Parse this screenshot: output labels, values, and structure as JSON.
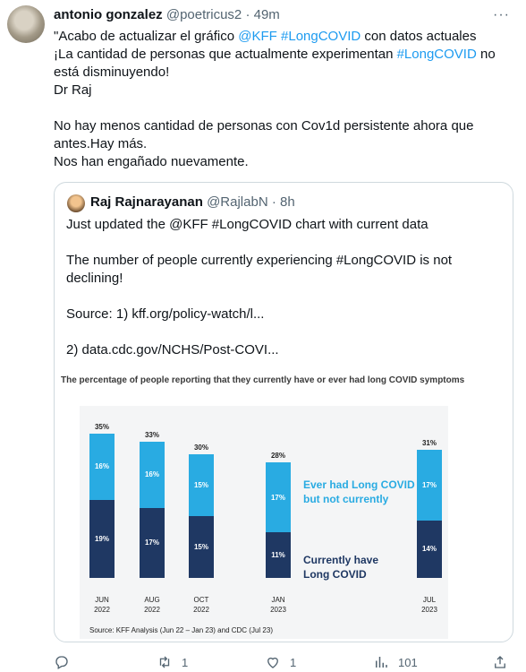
{
  "tweet": {
    "author_name": "antonio gonzalez",
    "author_handle": "@poetricus2",
    "time": "49m",
    "lines": [
      [
        {
          "t": "\"Acabo de actualizar el gráfico "
        },
        {
          "t": "@KFF",
          "link": true
        },
        {
          "t": " "
        },
        {
          "t": "#LongCOVID",
          "link": true
        },
        {
          "t": " con datos actuales"
        }
      ],
      [
        {
          "t": " ¡La cantidad de personas que actualmente experimentan "
        },
        {
          "t": "#LongCOVID",
          "link": true
        },
        {
          "t": " no"
        }
      ],
      [
        {
          "t": "está disminuyendo!"
        }
      ],
      [
        {
          "t": "Dr Raj"
        }
      ],
      [
        {
          "t": ""
        }
      ],
      [
        {
          "t": "No hay menos cantidad de personas con  Cov1d persistente ahora que"
        }
      ],
      [
        {
          "t": "antes.Hay más."
        }
      ],
      [
        {
          "t": "Nos han engañado nuevamente."
        }
      ]
    ]
  },
  "quoted": {
    "author_name": "Raj Rajnarayanan",
    "author_handle": "@RajlabN",
    "time": "8h",
    "lines": [
      "Just updated the @KFF  #LongCOVID chart with current data",
      "",
      "The number of people currently experiencing #LongCOVID is not",
      "declining!",
      "",
      "Source: 1) kff.org/policy-watch/l...",
      "",
      "2) data.cdc.gov/NCHS/Post-COVI..."
    ]
  },
  "chart_data": {
    "type": "bar",
    "stacked": true,
    "title": "The percentage of people reporting that they currently have or ever had long COVID symptoms",
    "categories": [
      "JUN 2022",
      "AUG 2022",
      "OCT 2022",
      "JAN 2023",
      "JUL 2023"
    ],
    "category_lines": [
      [
        "JUN",
        "2022"
      ],
      [
        "AUG",
        "2022"
      ],
      [
        "OCT",
        "2022"
      ],
      [
        "JAN",
        "2023"
      ],
      [
        "JUL",
        "2023"
      ]
    ],
    "series": [
      {
        "name": "Currently have Long COVID",
        "values": [
          19,
          17,
          15,
          11,
          14
        ],
        "color": "#1f3863"
      },
      {
        "name": "Ever had Long COVID but not currently",
        "values": [
          16,
          16,
          15,
          17,
          17
        ],
        "color": "#29abe2"
      }
    ],
    "totals": [
      35,
      33,
      30,
      28,
      31
    ],
    "annotations": {
      "ever_had": [
        "Ever had Long COVID",
        "but not currently"
      ],
      "currently": [
        "Currently have",
        "Long COVID"
      ]
    },
    "source": "Source: KFF Analysis (Jun 22 – Jan 23) and CDC (Jul 23)",
    "ylim": [
      0,
      40
    ],
    "grid": false,
    "legend": "inline annotations"
  },
  "actions": {
    "reply_count": "",
    "retweet_count": "1",
    "like_count": "1",
    "views_count": "101"
  },
  "colors": {
    "link": "#1d9bf0",
    "muted": "#536471",
    "dark_series": "#1f3863",
    "light_series": "#29abe2"
  },
  "icons": [
    "more-dots-icon",
    "reply-icon",
    "retweet-icon",
    "like-icon",
    "views-icon",
    "share-icon"
  ]
}
